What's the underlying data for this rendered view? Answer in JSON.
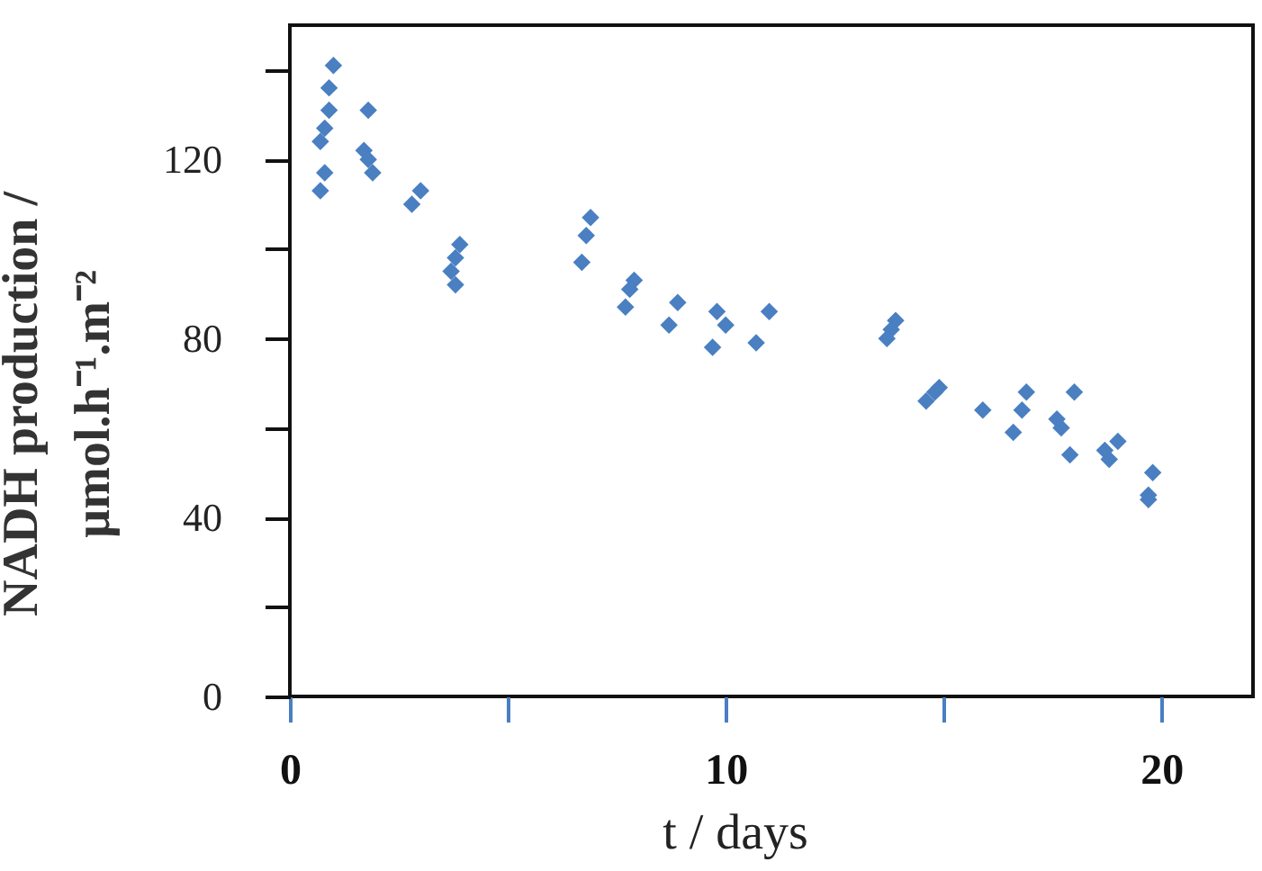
{
  "chart_data": {
    "type": "scatter",
    "xlabel": "t / days",
    "ylabel": "NADH production /\nµmol.h⁻¹.m⁻²",
    "x": [
      1.0,
      0.9,
      0.9,
      0.8,
      0.7,
      0.8,
      0.7,
      1.8,
      1.7,
      1.8,
      1.9,
      3.0,
      2.8,
      3.9,
      3.8,
      3.7,
      3.8,
      6.9,
      6.8,
      6.7,
      7.9,
      7.8,
      7.7,
      8.9,
      8.7,
      9.8,
      10.0,
      9.7,
      10.7,
      11.0,
      13.9,
      13.8,
      13.7,
      14.9,
      14.8,
      14.6,
      15.9,
      16.9,
      16.8,
      16.6,
      18.0,
      17.6,
      17.7,
      17.9,
      19.0,
      18.7,
      18.8,
      19.8,
      19.7,
      19.7
    ],
    "values": [
      141,
      136,
      131,
      127,
      124,
      117,
      113,
      131,
      122,
      120,
      117,
      113,
      110,
      101,
      98,
      95,
      92,
      107,
      103,
      97,
      93,
      91,
      87,
      88,
      83,
      86,
      83,
      78,
      79,
      86,
      84,
      82,
      80,
      69,
      68,
      66,
      64,
      68,
      64,
      59,
      68,
      62,
      60,
      54,
      57,
      55,
      53,
      50,
      45,
      44
    ],
    "color": "#4a7fc1",
    "marker": "diamond",
    "xlim": [
      0,
      22.1
    ],
    "xticks": [
      0,
      {
        "value": 5,
        "label": null
      },
      10,
      {
        "value": 15,
        "label": null
      },
      20
    ],
    "ylim": [
      0,
      150
    ],
    "yticks": [
      0,
      {
        "value": 20,
        "label": null
      },
      40,
      {
        "value": 60,
        "label": null
      },
      80,
      {
        "value": 100,
        "label": null
      },
      120,
      {
        "value": 140,
        "label": null
      }
    ]
  }
}
